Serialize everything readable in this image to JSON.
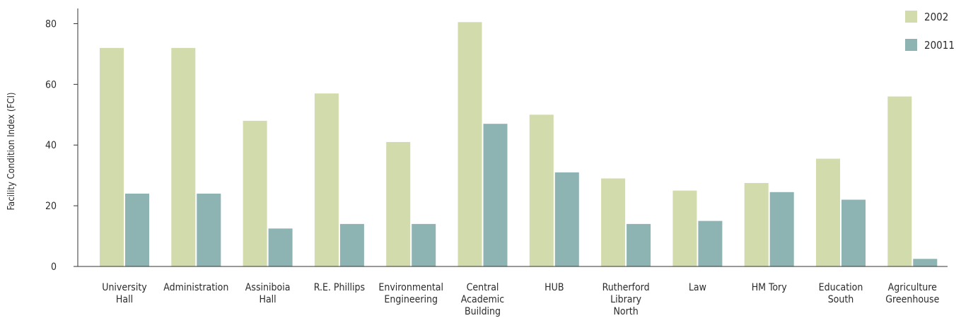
{
  "chart_data": {
    "type": "bar",
    "ylabel": "Facility Condition Index (FCI)",
    "xlabel": "",
    "ylim": [
      0,
      85
    ],
    "yticks": [
      0,
      20,
      40,
      60,
      80
    ],
    "grid": false,
    "legend_position": "top-right",
    "categories": [
      [
        "University",
        "Hall"
      ],
      [
        "Administration"
      ],
      [
        "Assiniboia",
        "Hall"
      ],
      [
        "R.E. Phillips"
      ],
      [
        "Environmental",
        "Engineering"
      ],
      [
        "Central",
        "Academic",
        "Building"
      ],
      [
        "HUB"
      ],
      [
        "Rutherford",
        "Library",
        "North"
      ],
      [
        "Law"
      ],
      [
        "HM Tory"
      ],
      [
        "Education",
        "South"
      ],
      [
        "Agriculture",
        "Greenhouse"
      ]
    ],
    "series": [
      {
        "name": "2002",
        "color": "#d1dbab",
        "values": [
          72,
          72,
          48,
          57,
          41,
          80.5,
          50,
          29,
          25,
          27.5,
          35.5,
          56
        ]
      },
      {
        "name": "20011",
        "color": "#8db4b2",
        "values": [
          24,
          24,
          12.5,
          14,
          14,
          47,
          31,
          14,
          15,
          24.5,
          22,
          2.5
        ]
      }
    ]
  }
}
